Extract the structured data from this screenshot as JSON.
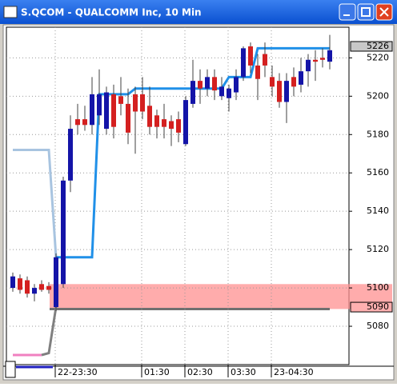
{
  "window": {
    "title": "S.QCOM - QUALCOMM Inc, 10 Min"
  },
  "chart_data": {
    "type": "candlestick",
    "categories": [
      null,
      null,
      null,
      null,
      null,
      null,
      "22-23:30",
      null,
      null,
      null,
      null,
      null,
      null,
      null,
      null,
      null,
      null,
      null,
      "01:30",
      null,
      null,
      null,
      null,
      null,
      "02:30",
      null,
      null,
      null,
      null,
      null,
      "03:30",
      null,
      null,
      null,
      null,
      null,
      "23-04:30",
      null,
      null,
      null,
      null,
      null,
      null,
      null,
      null
    ],
    "open": [
      5100,
      5105,
      5104,
      5097,
      5102,
      5101,
      5090,
      5102,
      5156,
      5188,
      5188,
      5185,
      5190,
      5183,
      5201,
      5200,
      5196,
      5201,
      5201,
      5195,
      5190,
      5188,
      5187,
      5188,
      5175,
      5196,
      5208,
      5204,
      5210,
      5200,
      5199,
      5202,
      5210,
      5226,
      5216,
      5222,
      5210,
      5208,
      5197,
      5210,
      5206,
      5213,
      5219,
      5220,
      5218
    ],
    "high": [
      5108,
      5107,
      5106,
      5102,
      5104,
      5103,
      5118,
      5158,
      5190,
      5196,
      5195,
      5210,
      5214,
      5205,
      5206,
      5210,
      5204,
      5205,
      5210,
      5205,
      5193,
      5196,
      5190,
      5192,
      5200,
      5219,
      5214,
      5214,
      5214,
      5210,
      5206,
      5214,
      5226,
      5228,
      5222,
      5228,
      5216,
      5212,
      5212,
      5215,
      5220,
      5222,
      5224,
      5225,
      5232
    ],
    "low": [
      5098,
      5097,
      5095,
      5093,
      5098,
      5097,
      5088,
      5100,
      5150,
      5180,
      5182,
      5180,
      5185,
      5180,
      5178,
      5190,
      5175,
      5170,
      5188,
      5180,
      5178,
      5178,
      5174,
      5176,
      5174,
      5194,
      5196,
      5200,
      5198,
      5198,
      5192,
      5198,
      5208,
      5212,
      5198,
      5210,
      5200,
      5194,
      5186,
      5200,
      5202,
      5205,
      5208,
      5215,
      5214
    ],
    "close": [
      5106,
      5099,
      5097,
      5100,
      5099,
      5099,
      5116,
      5156,
      5183,
      5185,
      5185,
      5201,
      5201,
      5202,
      5184,
      5196,
      5181,
      5192,
      5192,
      5184,
      5184,
      5184,
      5183,
      5181,
      5198,
      5208,
      5204,
      5210,
      5203,
      5205,
      5204,
      5210,
      5225,
      5216,
      5209,
      5216,
      5205,
      5197,
      5208,
      5205,
      5213,
      5219,
      5218,
      5219,
      5224
    ],
    "up_color": "#1414a8",
    "down_color": "#d42020",
    "lines": [
      {
        "color": "#a8c4e0",
        "values": [
          5172,
          5172,
          5172,
          5172,
          5172,
          5172,
          5116,
          null,
          null,
          null,
          null,
          null,
          null,
          null,
          null,
          null,
          null,
          null,
          null,
          null,
          null,
          null,
          null,
          null,
          null,
          null,
          null,
          null,
          null,
          null,
          null,
          null,
          null,
          null,
          null,
          null,
          null,
          null,
          null,
          null,
          null,
          null,
          null,
          null,
          null
        ]
      },
      {
        "color": "#2090e8",
        "values": [
          null,
          null,
          null,
          null,
          null,
          null,
          5116,
          5116,
          5116,
          5116,
          5116,
          5116,
          5201,
          5201,
          5201,
          5201,
          5201,
          5204,
          5204,
          5204,
          5204,
          5204,
          5204,
          5204,
          5204,
          5204,
          5204,
          5204,
          5204,
          5204,
          5210,
          5210,
          5210,
          5210,
          5225,
          5225,
          5225,
          5225,
          5225,
          5225,
          5225,
          5225,
          5225,
          5225,
          5225
        ]
      },
      {
        "color": "#f080c0",
        "values": [
          5065,
          5065,
          5065,
          5065,
          5065,
          null,
          null,
          null,
          null,
          null,
          null,
          null,
          null,
          null,
          null,
          null,
          null,
          null,
          null,
          null,
          null,
          null,
          null,
          null,
          null,
          null,
          null,
          null,
          null,
          null,
          null,
          null,
          null,
          null,
          null,
          null,
          null,
          null,
          null,
          null,
          null,
          null,
          null,
          null,
          null
        ]
      },
      {
        "color": "#808080",
        "values": [
          null,
          null,
          null,
          null,
          5065,
          5066,
          5090,
          null,
          null,
          null,
          null,
          null,
          null,
          null,
          null,
          null,
          null,
          null,
          null,
          null,
          null,
          null,
          null,
          null,
          null,
          null,
          null,
          null,
          null,
          null,
          null,
          null,
          null,
          null,
          null,
          null,
          null,
          null,
          null,
          null,
          null,
          null,
          null,
          null,
          null
        ]
      }
    ],
    "zone": {
      "low": 5089,
      "high": 5102,
      "color": "#ff9090"
    },
    "price_markers": [
      5226,
      5090
    ],
    "ylim": [
      5060,
      5236
    ],
    "yticks": [
      5080,
      5100,
      5120,
      5140,
      5160,
      5180,
      5200,
      5220
    ],
    "grid": true
  }
}
